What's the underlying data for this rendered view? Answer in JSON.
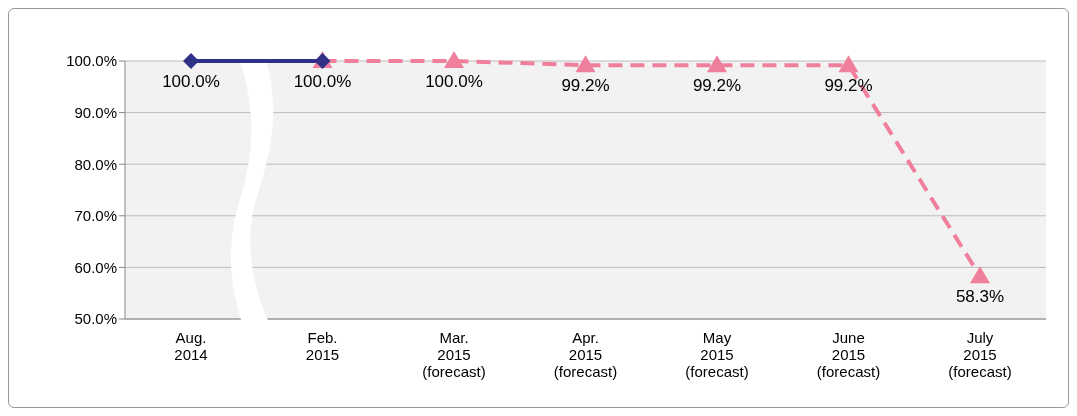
{
  "chart_data": {
    "type": "line",
    "categories": [
      "Aug.\n2014",
      "Feb.\n2015",
      "Mar.\n2015\n(forecast)",
      "Apr.\n2015\n(forecast)",
      "May\n2015\n(forecast)",
      "June\n2015\n(forecast)",
      "July\n2015\n(forecast)"
    ],
    "series": [
      {
        "color": "#2e3186",
        "values": [
          100,
          100,
          null,
          null,
          null,
          null,
          null
        ],
        "value_labels": [
          "100.0%",
          "100.0%",
          null,
          null,
          null,
          null,
          null
        ],
        "marker": "diamond",
        "line_style": "solid"
      },
      {
        "color": "#f07f9c",
        "values": [
          null,
          100,
          100,
          99.2,
          99.2,
          99.2,
          58.3
        ],
        "value_labels": [
          null,
          null,
          "100.0%",
          "99.2%",
          "99.2%",
          "99.2%",
          "58.3%"
        ],
        "marker": "triangle",
        "line_style": "dashed"
      }
    ],
    "ylim": [
      50,
      100
    ],
    "yticks": [
      {
        "value": 50,
        "label": "50.0%"
      },
      {
        "value": 60,
        "label": "60.0%"
      },
      {
        "value": 70,
        "label": "70.0%"
      },
      {
        "value": 80,
        "label": "80.0%"
      },
      {
        "value": 90,
        "label": "90.0%"
      },
      {
        "value": 100,
        "label": "100.0%"
      }
    ],
    "grid": "y",
    "legend": false
  }
}
